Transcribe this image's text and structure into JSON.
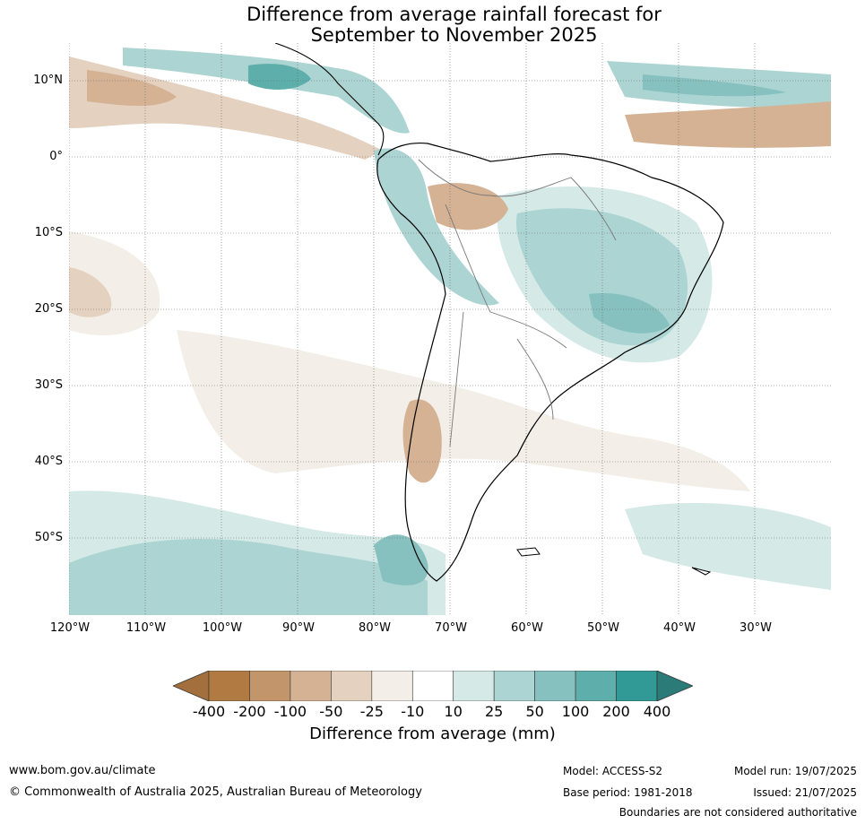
{
  "title_line1": "Difference from average rainfall forecast for",
  "title_line2": "September to November 2025",
  "lat_labels": [
    {
      "label": "10°N",
      "lat": 10
    },
    {
      "label": "0°",
      "lat": 0
    },
    {
      "label": "10°S",
      "lat": -10
    },
    {
      "label": "20°S",
      "lat": -20
    },
    {
      "label": "30°S",
      "lat": -30
    },
    {
      "label": "40°S",
      "lat": -40
    },
    {
      "label": "50°S",
      "lat": -50
    }
  ],
  "lon_labels": [
    {
      "label": "120°W",
      "lon": -120
    },
    {
      "label": "110°W",
      "lon": -110
    },
    {
      "label": "100°W",
      "lon": -100
    },
    {
      "label": "90°W",
      "lon": -90
    },
    {
      "label": "80°W",
      "lon": -80
    },
    {
      "label": "70°W",
      "lon": -70
    },
    {
      "label": "60°W",
      "lon": -60
    },
    {
      "label": "50°W",
      "lon": -50
    },
    {
      "label": "40°W",
      "lon": -40
    },
    {
      "label": "30°W",
      "lon": -30
    }
  ],
  "colorbar": {
    "ticks": [
      "-400",
      "-200",
      "-100",
      "-50",
      "-25",
      "-10",
      "10",
      "25",
      "50",
      "100",
      "200",
      "400"
    ],
    "colors": [
      "#a3703d",
      "#b07a42",
      "#c3956b",
      "#d4b293",
      "#e4d1bf",
      "#f3eee8",
      "#ffffff",
      "#d5e9e7",
      "#abd4d3",
      "#86c1bf",
      "#5eaeab",
      "#319a96",
      "#2b7b78"
    ],
    "label": "Difference from average (mm)"
  },
  "footer": {
    "url": "www.bom.gov.au/climate",
    "copyright": "© Commonwealth of Australia 2025, Australian Bureau of Meteorology",
    "model": "Model: ACCESS-S2",
    "base_period": "Base period: 1981-2018",
    "model_run": "Model run: 19/07/2025",
    "issued": "Issued: 21/07/2025",
    "disclaimer": "Boundaries are not considered authoritative"
  }
}
